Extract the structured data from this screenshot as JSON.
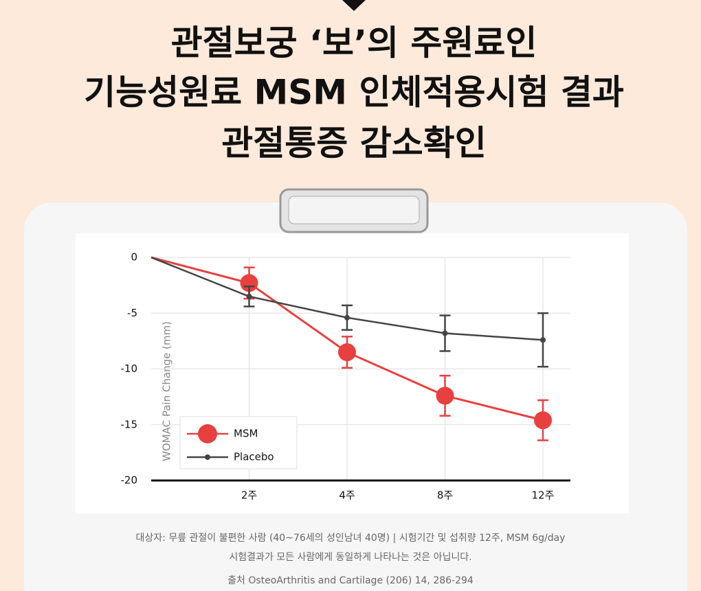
{
  "headline": [
    "관절보궁 ‘보’의 주원료인",
    "기능성원료 MSM 인체적용시험 결과",
    "관절통증 감소확인"
  ],
  "chart_data": {
    "type": "line",
    "ylabel": "WOMAC Pain Change (mm)",
    "categories": [
      null,
      "2주",
      "4주",
      "8주",
      "12주"
    ],
    "series": [
      {
        "name": "MSM",
        "color": "#e8403f",
        "values": [
          0,
          -2.3,
          -8.5,
          -12.4,
          -14.6
        ],
        "errors": [
          null,
          1.4,
          1.4,
          1.8,
          1.8
        ]
      },
      {
        "name": "Placebo",
        "color": "#444444",
        "values": [
          0,
          -3.5,
          -5.4,
          -6.8,
          -7.4
        ],
        "errors": [
          null,
          0.9,
          1.1,
          1.6,
          2.4
        ]
      }
    ],
    "ylim": [
      -20,
      0
    ],
    "yticks": [
      0,
      -5,
      -10,
      -15,
      -20
    ],
    "grid": true,
    "legend": "lower-left"
  },
  "notes": [
    "대상자: 무릎 관절이 불편한 사람 (40~76세의 성인남녀 40명) | 시험기간 및 섭취량 12주, MSM 6g/day",
    "시험결과가 모든 사람에게 동일하게 나타나는 것은 아닙니다.",
    "출처 OsteoArthritis and Cartilage (206) 14, 286-294"
  ]
}
